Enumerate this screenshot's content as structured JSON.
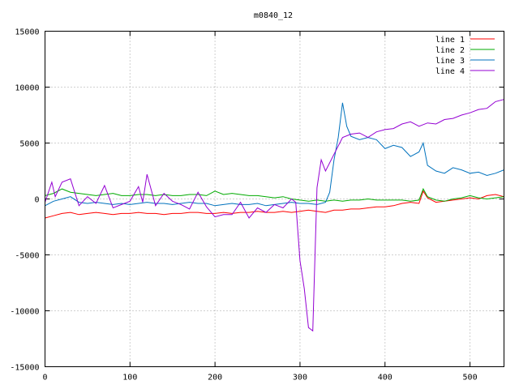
{
  "chart_data": {
    "type": "line",
    "title": "m0840_12",
    "xlabel": "",
    "ylabel": "",
    "xlim": [
      0,
      540
    ],
    "ylim": [
      -15000,
      15000
    ],
    "xticks": [
      0,
      100,
      200,
      300,
      400,
      500
    ],
    "yticks": [
      -15000,
      -10000,
      -5000,
      0,
      5000,
      10000,
      15000
    ],
    "grid": true,
    "legend_position": "top-right",
    "series": [
      {
        "name": "line 1",
        "color": "#ff0000",
        "x": [
          0,
          10,
          20,
          30,
          40,
          50,
          60,
          70,
          80,
          90,
          100,
          110,
          120,
          130,
          140,
          150,
          160,
          170,
          180,
          190,
          200,
          210,
          220,
          230,
          240,
          250,
          260,
          270,
          280,
          290,
          300,
          310,
          320,
          330,
          340,
          350,
          360,
          370,
          380,
          390,
          400,
          410,
          420,
          430,
          440,
          445,
          450,
          460,
          470,
          480,
          490,
          500,
          510,
          520,
          530,
          540
        ],
        "y": [
          -1700,
          -1500,
          -1300,
          -1200,
          -1400,
          -1300,
          -1200,
          -1300,
          -1400,
          -1300,
          -1300,
          -1200,
          -1300,
          -1300,
          -1400,
          -1300,
          -1300,
          -1200,
          -1200,
          -1300,
          -1300,
          -1200,
          -1300,
          -1200,
          -1200,
          -1100,
          -1200,
          -1200,
          -1100,
          -1200,
          -1100,
          -1000,
          -1100,
          -1200,
          -1000,
          -1000,
          -900,
          -900,
          -800,
          -700,
          -700,
          -600,
          -400,
          -300,
          -400,
          700,
          100,
          -300,
          -200,
          -100,
          0,
          100,
          0,
          300,
          400,
          200
        ]
      },
      {
        "name": "line 2",
        "color": "#00aa00",
        "x": [
          0,
          10,
          20,
          30,
          40,
          50,
          60,
          70,
          80,
          90,
          100,
          110,
          120,
          130,
          140,
          150,
          160,
          170,
          180,
          190,
          200,
          210,
          220,
          230,
          240,
          250,
          260,
          270,
          280,
          290,
          300,
          310,
          320,
          330,
          340,
          350,
          360,
          370,
          380,
          390,
          400,
          410,
          420,
          430,
          440,
          445,
          450,
          460,
          470,
          480,
          490,
          500,
          510,
          520,
          530,
          540
        ],
        "y": [
          300,
          500,
          900,
          600,
          500,
          400,
          300,
          400,
          500,
          300,
          300,
          400,
          400,
          300,
          400,
          300,
          300,
          400,
          400,
          300,
          700,
          400,
          500,
          400,
          300,
          300,
          200,
          100,
          200,
          0,
          -100,
          -200,
          -100,
          -200,
          -100,
          -200,
          -100,
          -100,
          0,
          -100,
          -100,
          -100,
          -100,
          -200,
          -100,
          900,
          200,
          -100,
          -200,
          0,
          100,
          300,
          100,
          0,
          100,
          200
        ]
      },
      {
        "name": "line 3",
        "color": "#0072bd",
        "x": [
          0,
          10,
          20,
          30,
          40,
          50,
          60,
          70,
          80,
          90,
          100,
          110,
          120,
          130,
          140,
          150,
          160,
          170,
          180,
          190,
          200,
          210,
          220,
          230,
          240,
          250,
          260,
          270,
          280,
          290,
          300,
          310,
          320,
          330,
          335,
          340,
          345,
          350,
          355,
          360,
          370,
          380,
          390,
          400,
          410,
          420,
          430,
          440,
          445,
          450,
          460,
          470,
          480,
          490,
          500,
          510,
          520,
          530,
          540
        ],
        "y": [
          -600,
          -200,
          0,
          200,
          -300,
          -400,
          -300,
          -400,
          -500,
          -400,
          -500,
          -400,
          -300,
          -400,
          -400,
          -500,
          -400,
          -300,
          -400,
          -400,
          -600,
          -500,
          -400,
          -500,
          -500,
          -400,
          -600,
          -500,
          -400,
          -300,
          -400,
          -400,
          -500,
          -300,
          600,
          3500,
          5500,
          8600,
          6500,
          5600,
          5300,
          5500,
          5300,
          4500,
          4800,
          4600,
          3800,
          4200,
          5000,
          3000,
          2500,
          2300,
          2800,
          2600,
          2300,
          2400,
          2100,
          2300,
          2600
        ]
      },
      {
        "name": "line 4",
        "color": "#9400d3",
        "x": [
          0,
          8,
          12,
          20,
          30,
          40,
          50,
          60,
          70,
          80,
          90,
          100,
          110,
          115,
          120,
          130,
          140,
          150,
          160,
          170,
          180,
          190,
          200,
          210,
          220,
          230,
          240,
          250,
          260,
          270,
          280,
          290,
          295,
          300,
          305,
          310,
          315,
          320,
          325,
          330,
          340,
          350,
          360,
          370,
          380,
          390,
          400,
          410,
          420,
          430,
          440,
          450,
          460,
          470,
          480,
          490,
          500,
          510,
          520,
          530,
          540
        ],
        "y": [
          -300,
          1500,
          200,
          1500,
          1800,
          -600,
          200,
          -400,
          1200,
          -800,
          -500,
          -200,
          1100,
          -300,
          2200,
          -600,
          500,
          -200,
          -500,
          -900,
          600,
          -700,
          -1600,
          -1400,
          -1400,
          -300,
          -1700,
          -800,
          -1200,
          -500,
          -800,
          0,
          -300,
          -5500,
          -8000,
          -11500,
          -11800,
          1000,
          3500,
          2500,
          4000,
          5500,
          5800,
          5900,
          5500,
          6000,
          6200,
          6300,
          6700,
          6900,
          6500,
          6800,
          6700,
          7100,
          7200,
          7500,
          7700,
          8000,
          8100,
          8700,
          8900
        ]
      }
    ]
  }
}
